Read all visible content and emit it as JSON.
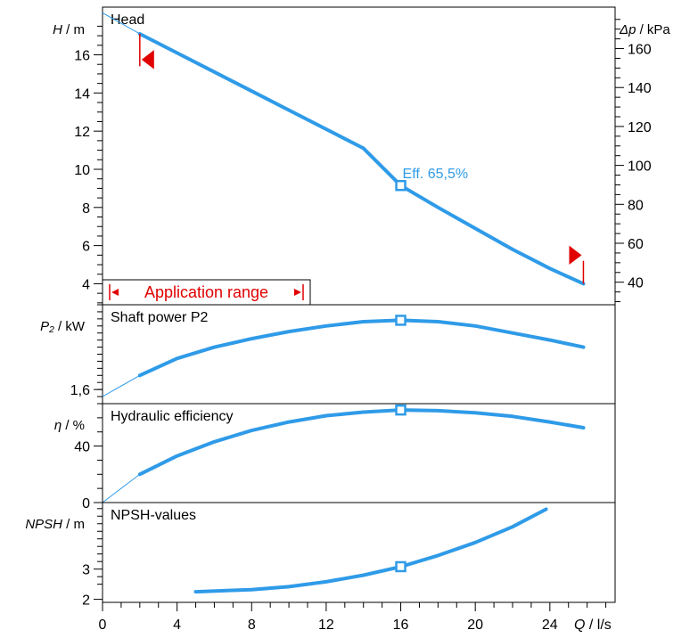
{
  "chart_data": [
    {
      "type": "line",
      "title": "Head",
      "ylabel": "H",
      "yunit": "m",
      "ylim": [
        2.9,
        18.5
      ],
      "yticks": [
        4,
        6,
        8,
        10,
        12,
        14,
        16
      ],
      "y2label": "Δp",
      "y2unit": "kPa",
      "y2ticks": [
        40,
        60,
        80,
        100,
        120,
        140,
        160
      ],
      "x": [
        2,
        4,
        6,
        8,
        10,
        12,
        14,
        16,
        18,
        20,
        22,
        24,
        25.8
      ],
      "y": [
        17.1,
        16.1,
        15.1,
        14.1,
        13.1,
        12.1,
        11.1,
        9.15,
        8.0,
        6.9,
        5.8,
        4.8,
        4.0
      ],
      "annotation": "Eff.  65,5%",
      "duty_point": {
        "x": 16,
        "y": 9.15
      },
      "range_label": "Application range",
      "range_x": [
        2,
        25.8
      ]
    },
    {
      "type": "line",
      "title": "Shaft power P2",
      "ylabel": "P₂",
      "yunit": "kW",
      "ytick_label": "1,6",
      "x": [
        2,
        4,
        6,
        8,
        10,
        12,
        14,
        16,
        18,
        20,
        22,
        24,
        25.8
      ],
      "y": [
        1.7,
        1.82,
        1.9,
        1.96,
        2.01,
        2.05,
        2.08,
        2.09,
        2.08,
        2.05,
        2.0,
        1.95,
        1.9
      ],
      "duty_point": {
        "x": 16,
        "y": 2.09
      }
    },
    {
      "type": "line",
      "title": "Hydraulic efficiency",
      "ylabel": "η",
      "yunit": "%",
      "yticks": [
        0,
        40
      ],
      "ylim": [
        0,
        70
      ],
      "x": [
        2,
        4,
        6,
        8,
        10,
        12,
        14,
        16,
        18,
        20,
        22,
        24,
        25.8
      ],
      "y": [
        20,
        33,
        43,
        51,
        57,
        61.5,
        64,
        65.5,
        65,
        63.5,
        61,
        57,
        53
      ],
      "duty_point": {
        "x": 16,
        "y": 65.5
      }
    },
    {
      "type": "line",
      "title": "NPSH-values",
      "ylabel": "NPSH",
      "yunit": "m",
      "yticks": [
        2,
        3
      ],
      "ylim": [
        1.9,
        5.2
      ],
      "x": [
        5,
        8,
        10,
        12,
        14,
        16,
        18,
        20,
        22,
        23.8
      ],
      "y": [
        2.25,
        2.32,
        2.42,
        2.58,
        2.8,
        3.08,
        3.45,
        3.88,
        4.4,
        4.98
      ],
      "duty_point": {
        "x": 16,
        "y": 3.08
      }
    }
  ],
  "x_axis": {
    "label": "Q",
    "unit": "l/s",
    "ticks": [
      0,
      4,
      8,
      12,
      16,
      20,
      24
    ],
    "xlim": [
      0,
      27.5
    ]
  },
  "colors": {
    "curve": "#2f9be8",
    "range": "#e00000",
    "annotation": "#2f9be8"
  }
}
